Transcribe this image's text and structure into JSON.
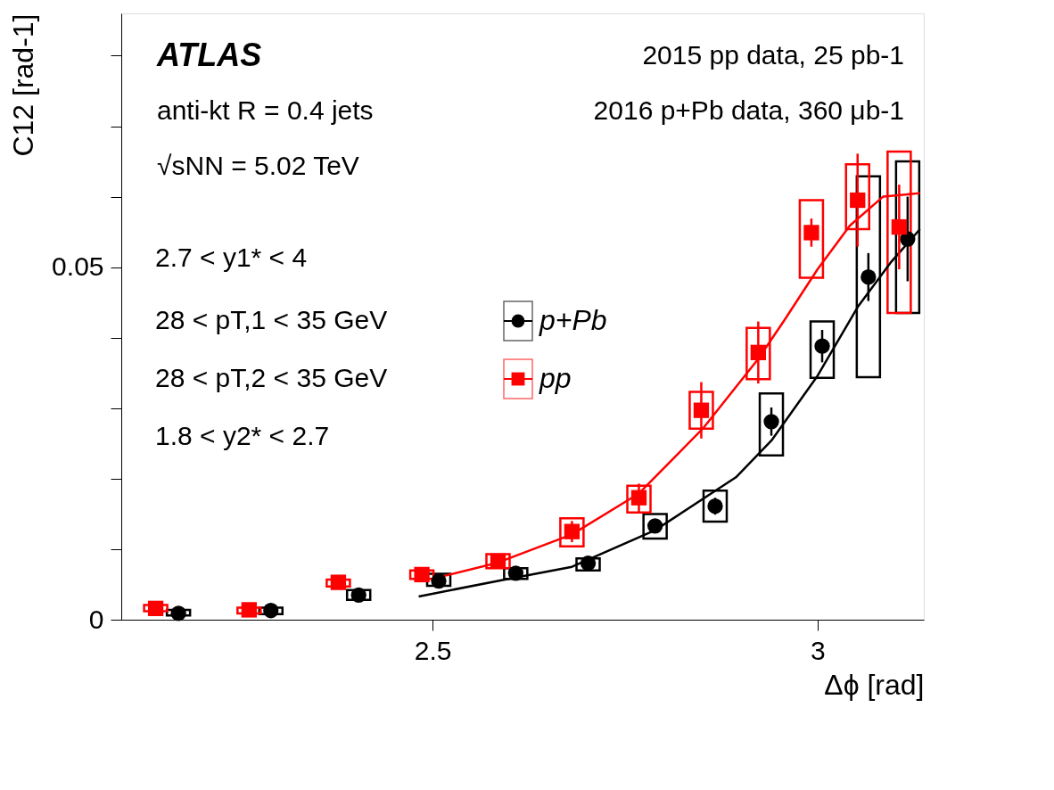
{
  "chart_data": {
    "type": "scatter",
    "xlabel": "Δϕ [rad]",
    "ylabel": "C12 [rad-1]",
    "xlim": [
      2.0957,
      3.138
    ],
    "ylim": [
      0,
      0.086
    ],
    "xticks": [
      2.5,
      3
    ],
    "yticks": [
      0,
      {
        "value": 0.01,
        "label": null
      },
      {
        "value": 0.02,
        "label": null
      },
      {
        "value": 0.03,
        "label": null
      },
      {
        "value": 0.04,
        "label": null
      },
      0.05,
      {
        "value": 0.06,
        "label": null
      },
      {
        "value": 0.07,
        "label": null
      },
      {
        "value": 0.08,
        "label": null
      }
    ],
    "grid": false,
    "legend": "center",
    "annotations": [
      "ATLAS",
      "2015 pp data, 25 pb-1",
      "anti-kt R = 0.4 jets",
      "2016 p+Pb data, 360 μb-1",
      "√sNN = 5.02 TeV",
      "2.7 < y1* < 4",
      "28 < pT,1 < 35 GeV",
      "28 < pT,2 < 35 GeV",
      "1.8 < y2* < 2.7"
    ],
    "series": [
      {
        "type": "bar",
        "color": "#000000",
        "x": [
          2.17,
          2.29,
          2.404,
          2.508,
          2.608,
          2.702,
          2.789,
          2.867,
          2.94,
          3.006,
          3.066,
          3.117
        ],
        "base": [
          0.0006,
          0.0008,
          0.0028,
          0.0048,
          0.0058,
          0.007,
          0.0115,
          0.0139,
          0.0233,
          0.0343,
          0.0344,
          0.0435
        ],
        "values": [
          0.0008,
          0.0009,
          0.0014,
          0.0017,
          0.0015,
          0.0017,
          0.0035,
          0.0044,
          0.0088,
          0.008,
          0.0285,
          0.0215
        ]
      },
      {
        "type": "bar",
        "color": "#ff0000",
        "x": [
          2.1404,
          2.2617,
          2.3776,
          2.4861,
          2.585,
          2.681,
          2.768,
          2.849,
          2.923,
          2.992,
          3.052,
          3.106
        ],
        "base": [
          0.0012,
          0.0009,
          0.0047,
          0.0058,
          0.0073,
          0.0104,
          0.0152,
          0.0271,
          0.0341,
          0.0485,
          0.0554,
          0.0435
        ],
        "values": [
          0.0009,
          0.0008,
          0.001,
          0.0012,
          0.002,
          0.004,
          0.0038,
          0.0052,
          0.0073,
          0.011,
          0.0092,
          0.0229
        ]
      },
      {
        "type": "line",
        "color": "#000000",
        "x": [
          2.482,
          2.585,
          2.681,
          2.789,
          2.894,
          2.94,
          3.0,
          3.053,
          3.096,
          3.133
        ],
        "values": [
          0.0033,
          0.0055,
          0.0075,
          0.0127,
          0.0202,
          0.0254,
          0.0346,
          0.0445,
          0.0508,
          0.0554
        ]
      },
      {
        "type": "line",
        "color": "#ff0000",
        "x": [
          2.5,
          2.585,
          2.681,
          2.768,
          2.851,
          2.923,
          2.957,
          3.0,
          3.042,
          3.085,
          3.133
        ],
        "values": [
          0.0058,
          0.0081,
          0.0121,
          0.0179,
          0.0271,
          0.037,
          0.0425,
          0.0497,
          0.0559,
          0.06,
          0.0605
        ]
      },
      {
        "name": "p+Pb",
        "color": "#000000",
        "marker": "circle",
        "x": [
          2.17,
          2.29,
          2.404,
          2.508,
          2.608,
          2.702,
          2.789,
          2.867,
          2.94,
          3.006,
          3.066,
          3.117
        ],
        "values": [
          0.0009,
          0.0013,
          0.0035,
          0.0055,
          0.0066,
          0.008,
          0.0133,
          0.0161,
          0.0281,
          0.0388,
          0.0486,
          0.054
        ],
        "errors": [
          null,
          null,
          null,
          null,
          null,
          null,
          null,
          0.0012,
          0.002,
          0.0023,
          0.0034,
          0.006
        ]
      },
      {
        "name": "pp",
        "color": "#ff0000",
        "marker": "square",
        "x": [
          2.1404,
          2.2617,
          2.3776,
          2.4861,
          2.585,
          2.681,
          2.768,
          2.849,
          2.923,
          2.992,
          3.052,
          3.106
        ],
        "values": [
          0.0016,
          0.0014,
          0.0053,
          0.0064,
          0.0083,
          0.0125,
          0.0173,
          0.0297,
          0.0379,
          0.0549,
          0.0595,
          0.0557
        ],
        "errors": [
          null,
          null,
          0.001,
          0.001,
          0.001,
          0.0015,
          0.002,
          0.004,
          0.0044,
          0.002,
          0.0066,
          0.006
        ]
      }
    ]
  }
}
